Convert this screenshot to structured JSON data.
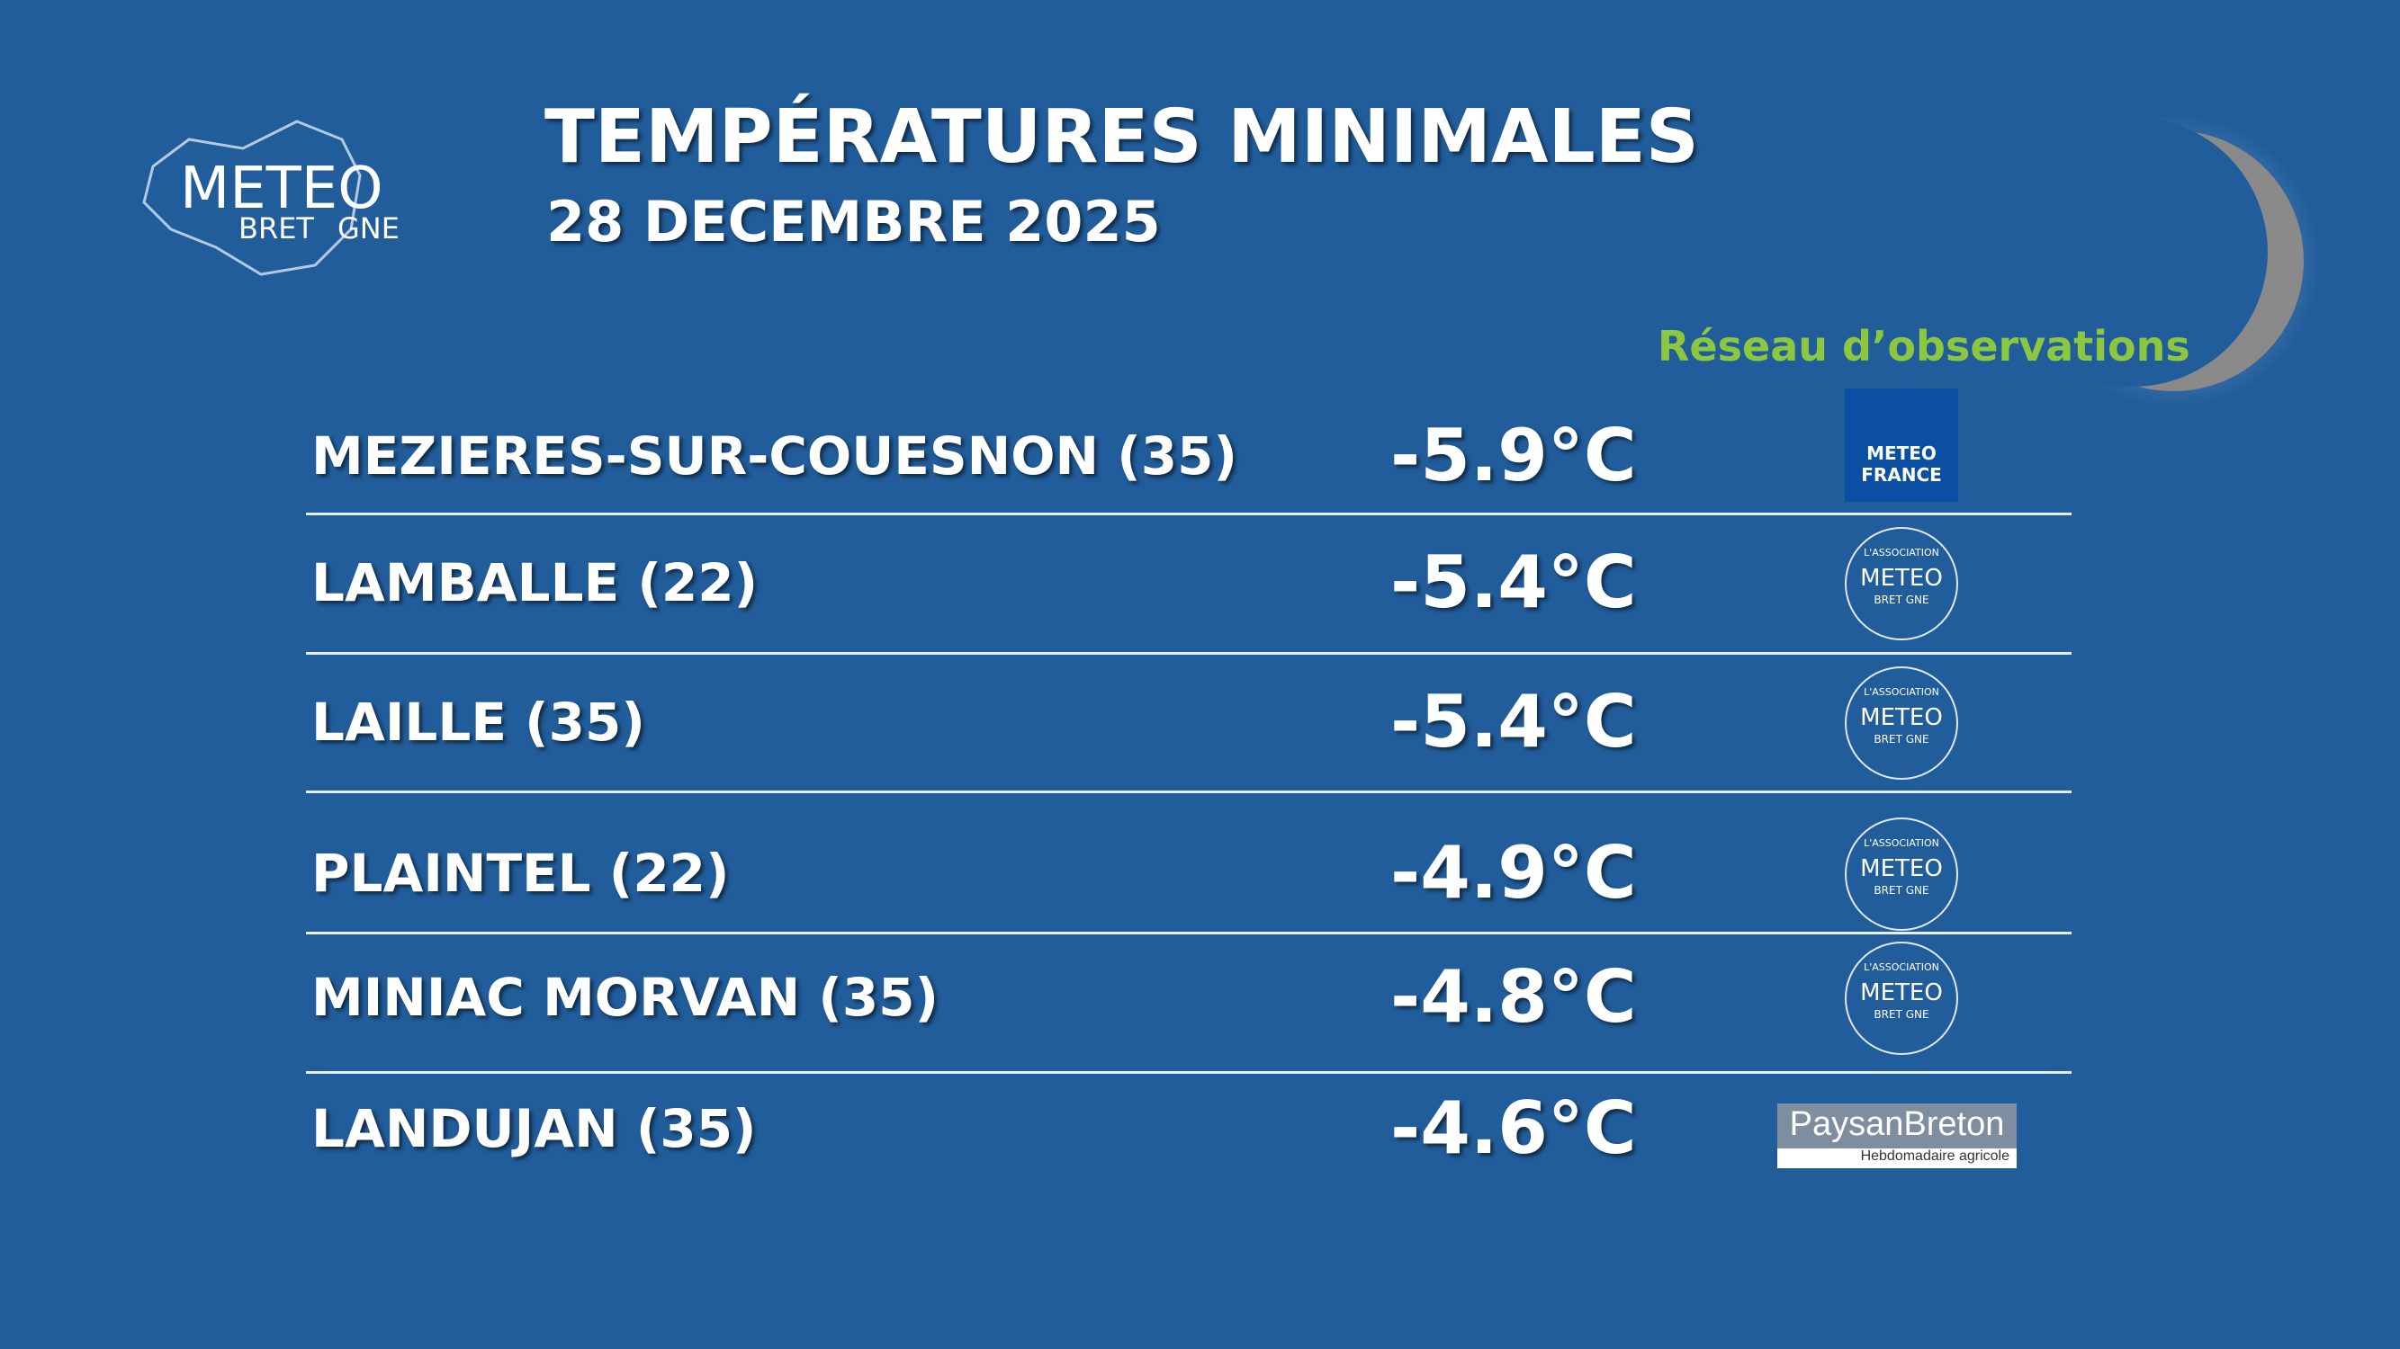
{
  "logo": {
    "word": "METEO",
    "sub_left": "BRET",
    "sub_right": "GNE"
  },
  "header": {
    "title": "TEMPÉRATURES MINIMALES",
    "date": "28 DECEMBRE 2025"
  },
  "network_label": "Réseau d’observations",
  "rows": [
    {
      "station": "MEZIERES-SUR-COUESNON (35)",
      "temp": "-5.9°C",
      "source": {
        "line1": "METEO",
        "line2": "FRANCE"
      }
    },
    {
      "station": "LAMBALLE (22)",
      "temp": "-5.4°C",
      "source": {
        "top": "L'ASSOCIATION",
        "word": "METEO",
        "sub": "BRET GNE"
      }
    },
    {
      "station": "LAILLE (35)",
      "temp": "-5.4°C",
      "source": {
        "top": "L'ASSOCIATION",
        "word": "METEO",
        "sub": "BRET GNE"
      }
    },
    {
      "station": "PLAINTEL (22)",
      "temp": "-4.9°C",
      "source": {
        "top": "L'ASSOCIATION",
        "word": "METEO",
        "sub": "BRET GNE"
      }
    },
    {
      "station": "MINIAC MORVAN (35)",
      "temp": "-4.8°C",
      "source": {
        "top": "L'ASSOCIATION",
        "word": "METEO",
        "sub": "BRET GNE"
      }
    },
    {
      "station": "LANDUJAN (35)",
      "temp": "-4.6°C",
      "source": {
        "line1": "PaysanBreton",
        "line2": "Hebdomadaire agricole"
      }
    }
  ]
}
